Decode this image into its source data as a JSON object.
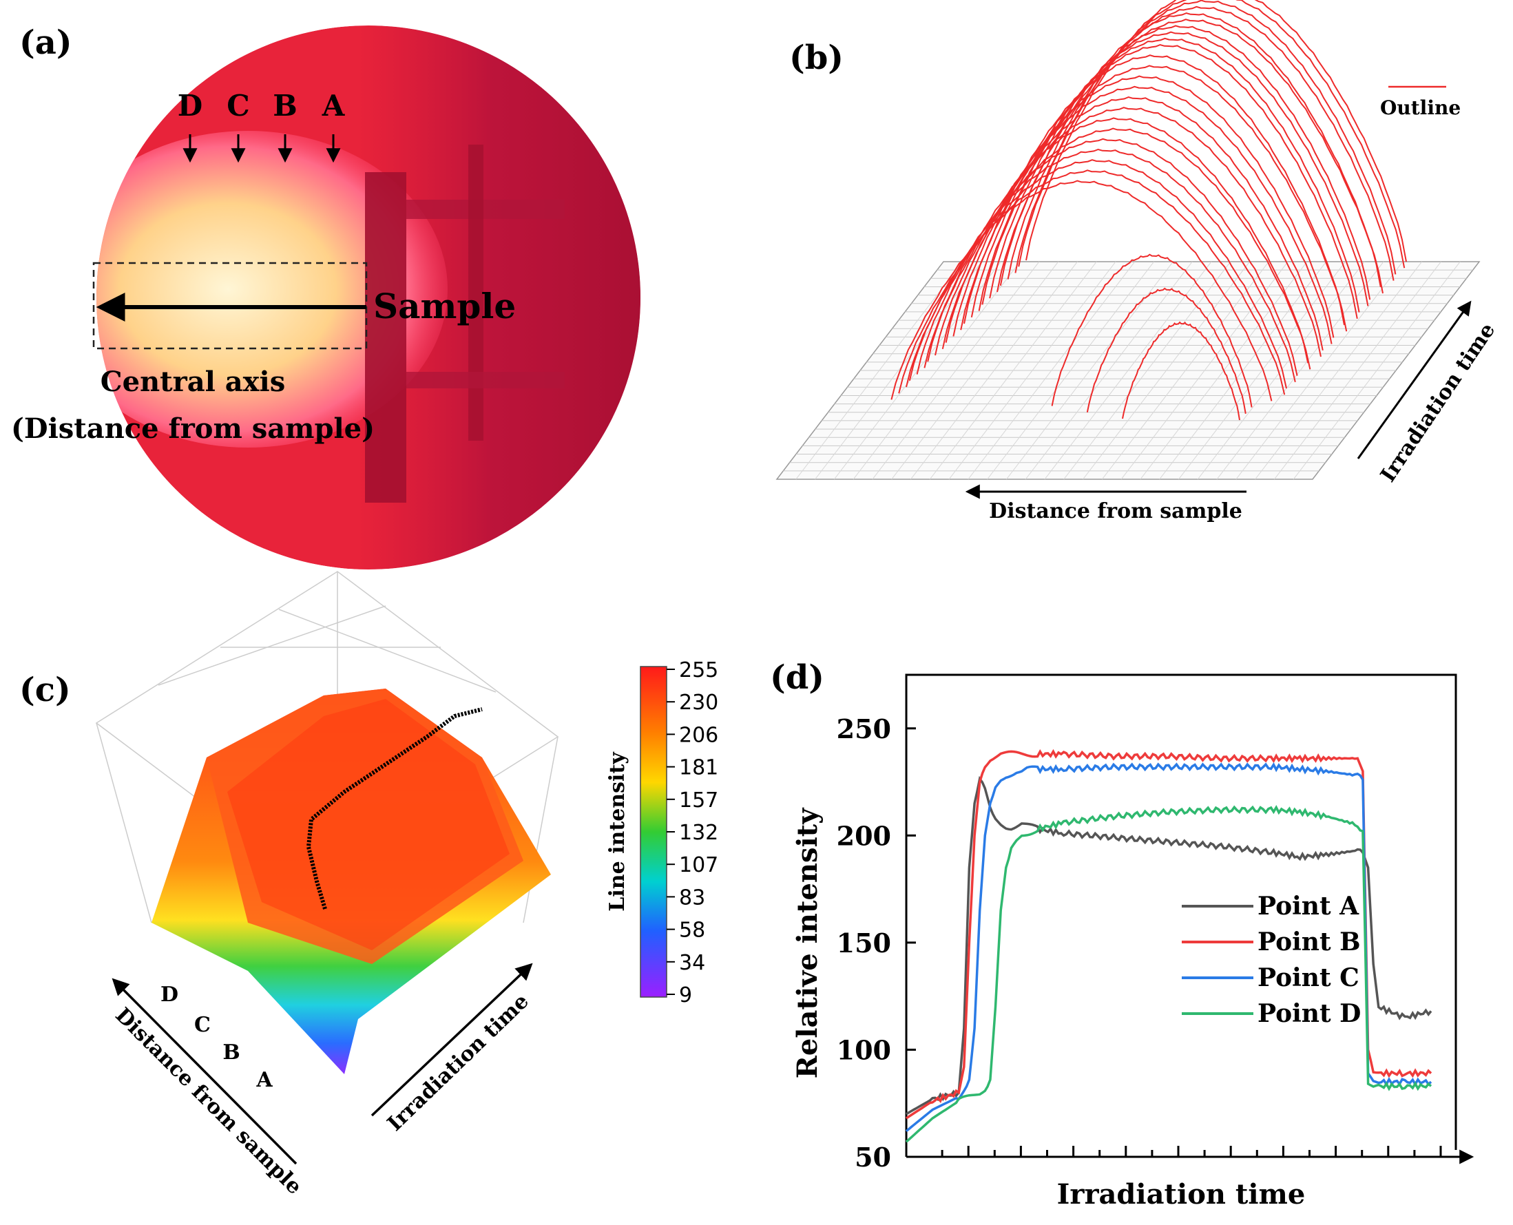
{
  "panel_labels": {
    "a": "(a)",
    "b": "(b)",
    "c": "(c)",
    "d": "(d)"
  },
  "panel_a": {
    "points": [
      "D",
      "C",
      "B",
      "A"
    ],
    "sample_label": "Sample",
    "axis_line1": "Central axis",
    "axis_line2": "(Distance from sample)"
  },
  "panel_b": {
    "legend": "Outline",
    "xlabel": "Distance from sample",
    "ylabel": "Irradiation time"
  },
  "panel_c": {
    "colorbar_title": "Line intensity",
    "colorbar_ticks": [
      "255",
      "230",
      "206",
      "181",
      "157",
      "132",
      "107",
      "83",
      "58",
      "34",
      "9"
    ],
    "distance_label": "Distance from sample",
    "time_label": "Irradiation time",
    "points": [
      "D",
      "C",
      "B",
      "A"
    ]
  },
  "colors": {
    "flame_red": "#e8233a",
    "outline_red": "#ee2a2a",
    "point_a": "#555555",
    "point_b": "#ee3b3b",
    "point_c": "#2a7be6",
    "point_d": "#2fb86f"
  },
  "chart_data": {
    "type": "line",
    "title": "",
    "xlabel": "Irradiation time",
    "ylabel": "Relative intensity",
    "ylim": [
      50,
      275
    ],
    "xlim": [
      0,
      100
    ],
    "yticks": [
      50,
      100,
      150,
      200,
      250
    ],
    "x": [
      0,
      5,
      10,
      11,
      12,
      13,
      14,
      15,
      16,
      17,
      18,
      19,
      20,
      21,
      22,
      23,
      24,
      25,
      30,
      40,
      50,
      60,
      70,
      75,
      80,
      86,
      87,
      88,
      89,
      90,
      95,
      100
    ],
    "series": [
      {
        "name": "Point A",
        "color": "#555555",
        "values": [
          70,
          77,
          80,
          110,
          185,
          215,
          226,
          222,
          213,
          207,
          205,
          204,
          204,
          205,
          206,
          205,
          204,
          203,
          201,
          199,
          197,
          195,
          192,
          190,
          191,
          193,
          192,
          185,
          140,
          120,
          115,
          118
        ]
      },
      {
        "name": "Point B",
        "color": "#ee3b3b",
        "values": [
          68,
          76,
          80,
          92,
          150,
          200,
          225,
          233,
          236,
          237,
          238,
          238,
          238,
          238,
          238,
          238,
          238,
          238,
          238,
          237,
          237,
          236,
          236,
          236,
          236,
          236,
          230,
          100,
          90,
          89,
          89,
          89
        ]
      },
      {
        "name": "Point C",
        "color": "#2a7be6",
        "values": [
          62,
          72,
          78,
          82,
          86,
          110,
          165,
          200,
          215,
          222,
          226,
          228,
          229,
          230,
          230,
          231,
          231,
          231,
          231,
          232,
          232,
          232,
          232,
          231,
          230,
          228,
          226,
          88,
          85,
          85,
          85,
          85
        ]
      },
      {
        "name": "Point D",
        "color": "#2fb86f",
        "values": [
          57,
          68,
          76,
          77,
          78,
          79,
          80,
          82,
          86,
          120,
          165,
          185,
          193,
          197,
          200,
          201,
          202,
          203,
          206,
          209,
          211,
          212,
          212,
          211,
          209,
          205,
          202,
          85,
          83,
          83,
          83,
          83
        ]
      }
    ],
    "legend_position": "center-right"
  }
}
